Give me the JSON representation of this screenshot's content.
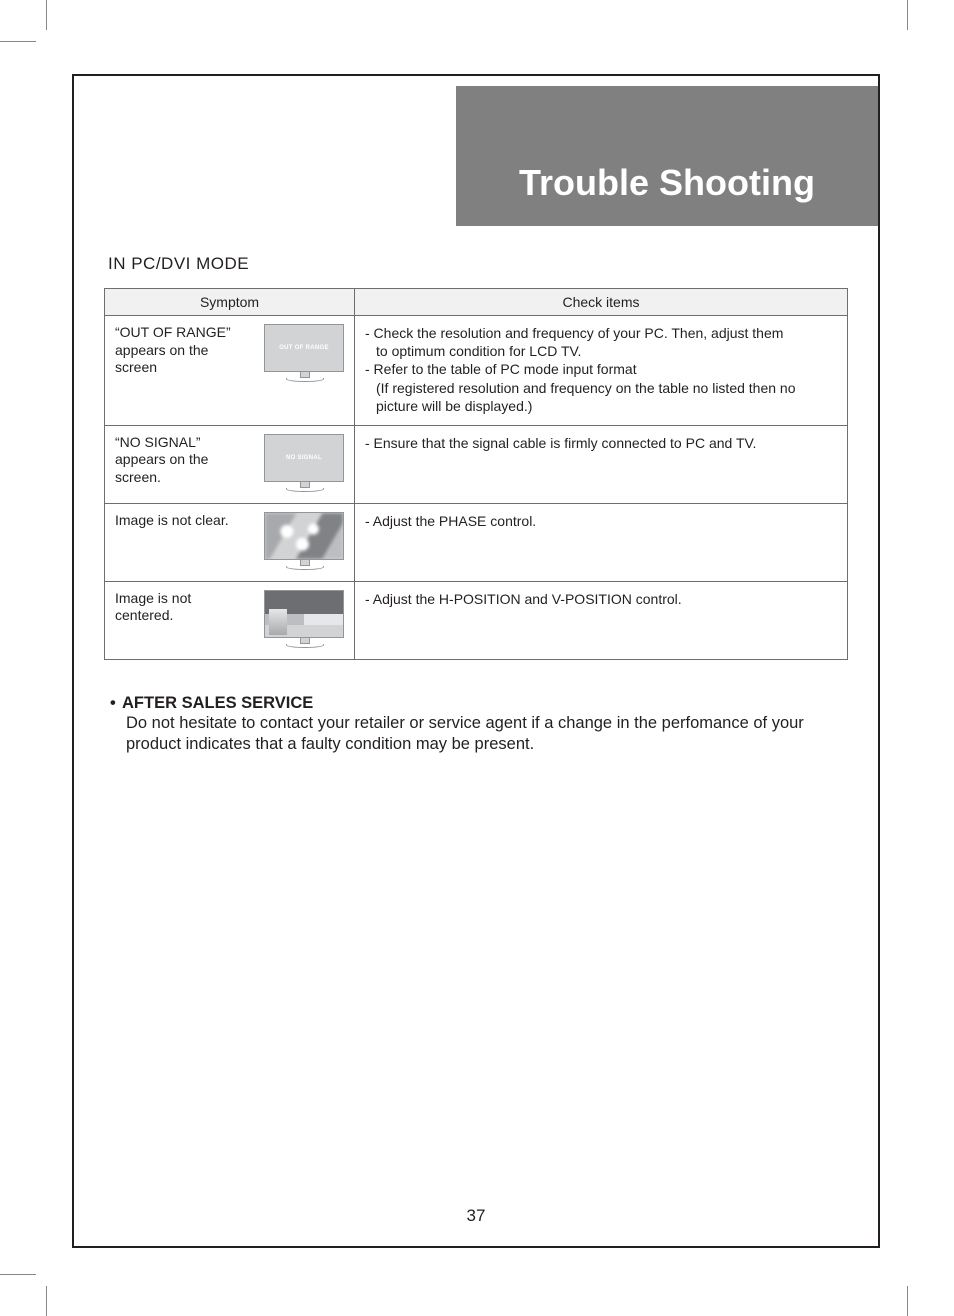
{
  "header": {
    "title": "Trouble Shooting"
  },
  "section": {
    "heading": "IN PC/DVI MODE"
  },
  "table": {
    "col_symptom": "Symptom",
    "col_check": "Check items",
    "rows": [
      {
        "symptom": "“OUT OF RANGE” appears on the screen",
        "screen_msg": "OUT OF RANGE",
        "check": [
          "- Check the resolution and frequency of your PC. Then, adjust them",
          "to optimum condition for LCD TV.",
          "- Refer to the table of PC mode input format",
          "(If registered resolution and frequency on the table no listed then no",
          "picture will be displayed.)"
        ],
        "indent_map": [
          0,
          1,
          0,
          1,
          1
        ]
      },
      {
        "symptom": "“NO SIGNAL” appears on the screen.",
        "screen_msg": "NO SIGNAL",
        "check": [
          "- Ensure that the signal cable is firmly connected to PC and TV."
        ],
        "indent_map": [
          0
        ]
      },
      {
        "symptom": "Image is not clear.",
        "screen_msg": "",
        "check": [
          "- Adjust the PHASE control."
        ],
        "indent_map": [
          0
        ]
      },
      {
        "symptom": "Image is not centered.",
        "screen_msg": "",
        "check": [
          "- Adjust the H-POSITION and V-POSITION control."
        ],
        "indent_map": [
          0
        ]
      }
    ]
  },
  "after": {
    "bullet": "•",
    "heading": "AFTER SALES SERVICE",
    "body": "Do not hesitate to contact your retailer or service agent if a change in the perfomance of your product indicates that a faulty condition may be present."
  },
  "page_number": "37",
  "colors": {
    "header_bg": "#808080",
    "header_text": "#ffffff",
    "border": "#6d6e71",
    "th_bg": "#f1f1f2",
    "text": "#231f20"
  }
}
